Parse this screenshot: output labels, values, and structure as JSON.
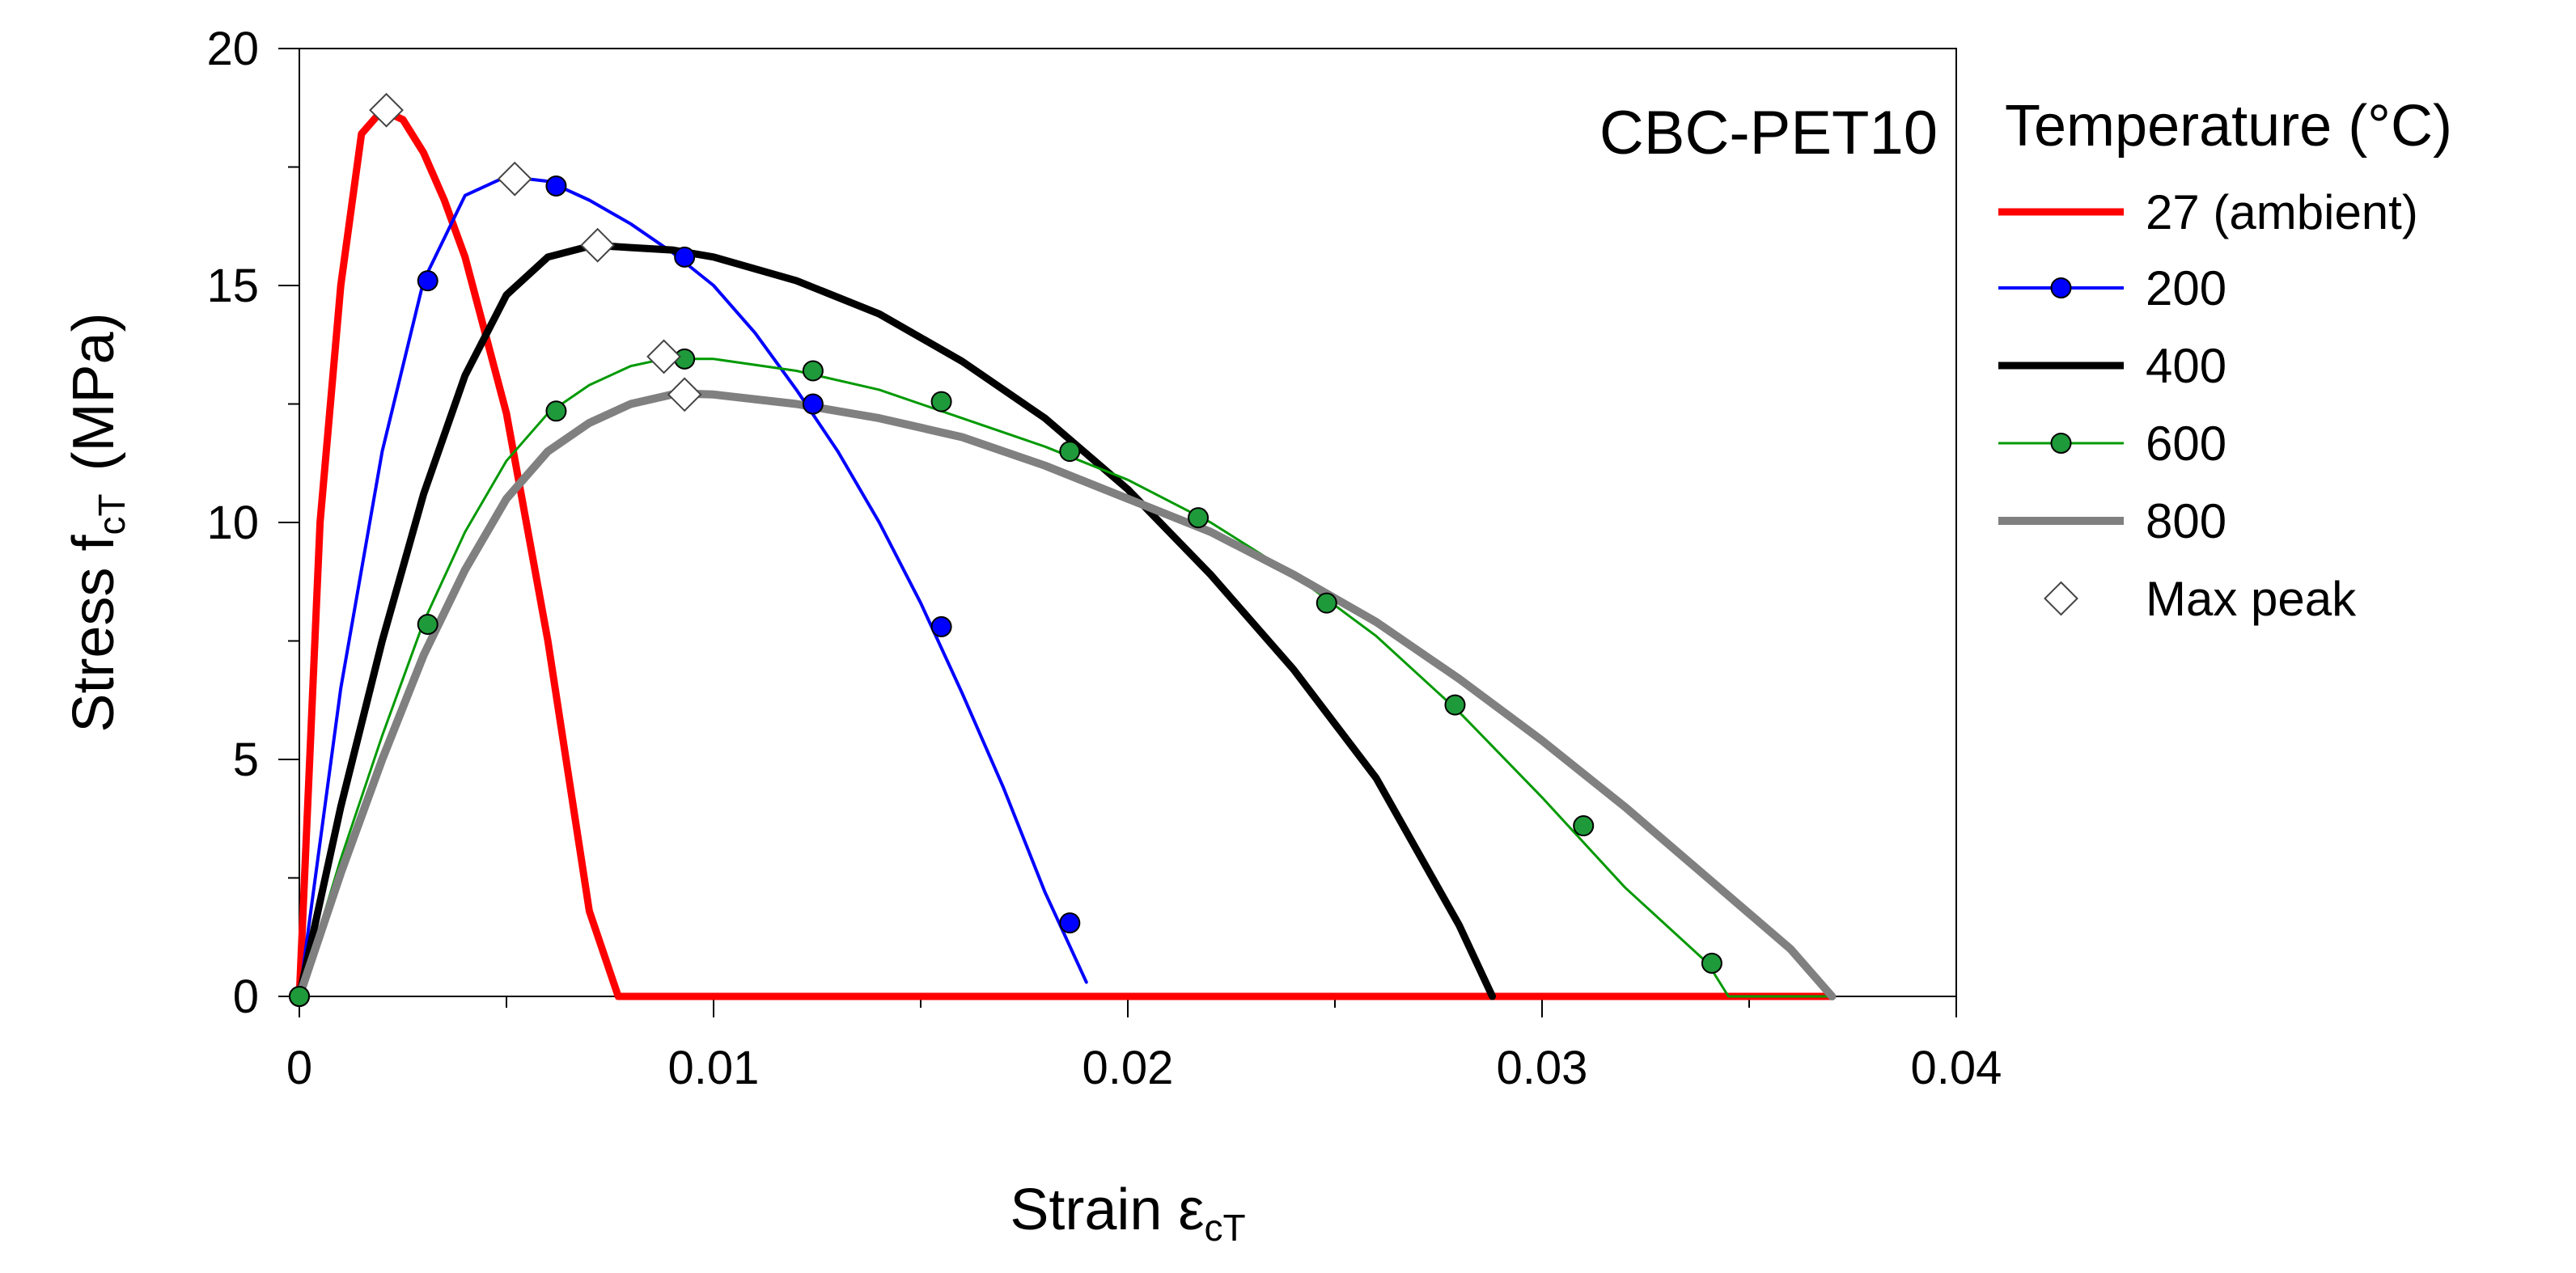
{
  "chart_data": {
    "type": "line",
    "annotation": "CBC-PET10",
    "xlim": [
      0,
      0.04
    ],
    "ylim": [
      0,
      20
    ],
    "xticks": [
      0,
      0.01,
      0.02,
      0.03,
      0.04
    ],
    "xtick_labels": [
      "0",
      "0.01",
      "0.02",
      "0.03",
      "0.04"
    ],
    "yticks": [
      0,
      5,
      10,
      15,
      20
    ],
    "ytick_labels": [
      "0",
      "5",
      "10",
      "15",
      "20"
    ],
    "xlabel": {
      "main": "Strain ε",
      "sub": "cT"
    },
    "ylabel": {
      "main": "Stress f",
      "sub": "cT",
      "unit": "(MPa)"
    },
    "legend": {
      "title": "Temperature (°C)",
      "placement": "right"
    },
    "series": [
      {
        "name": "27 (ambient)",
        "color": "#ff0000",
        "width": 9,
        "marker": "none",
        "x": [
          0,
          0.0005,
          0.001,
          0.0015,
          0.002,
          0.0025,
          0.003,
          0.0035,
          0.004,
          0.005,
          0.006,
          0.007,
          0.0077,
          0.01,
          0.02,
          0.03,
          0.037
        ],
        "y": [
          0,
          10,
          15,
          18.2,
          18.7,
          18.5,
          17.8,
          16.8,
          15.6,
          12.3,
          7.5,
          1.8,
          0,
          0,
          0,
          0,
          0
        ]
      },
      {
        "name": "200",
        "color": "#0000ff",
        "width": 4,
        "marker": "circle",
        "marker_fill": "#0000ff",
        "x": [
          0,
          0.001,
          0.002,
          0.003,
          0.004,
          0.005,
          0.006,
          0.007,
          0.008,
          0.009,
          0.01,
          0.011,
          0.012,
          0.013,
          0.014,
          0.015,
          0.016,
          0.017,
          0.018,
          0.019
        ],
        "y": [
          0,
          6.5,
          11.5,
          15.1,
          16.9,
          17.3,
          17.2,
          16.8,
          16.3,
          15.7,
          15.0,
          14.0,
          12.8,
          11.5,
          10.0,
          8.3,
          6.4,
          4.4,
          2.2,
          0.3
        ],
        "marker_x": [
          0,
          0.0031,
          0.0062,
          0.0093,
          0.0124,
          0.0155,
          0.0186
        ],
        "marker_y": [
          0,
          15.1,
          17.1,
          15.6,
          12.5,
          7.8,
          1.55
        ]
      },
      {
        "name": "400",
        "color": "#000000",
        "width": 9,
        "marker": "none",
        "x": [
          0,
          0.001,
          0.002,
          0.003,
          0.004,
          0.005,
          0.006,
          0.0071,
          0.008,
          0.009,
          0.01,
          0.012,
          0.014,
          0.016,
          0.018,
          0.02,
          0.022,
          0.024,
          0.026,
          0.028,
          0.0288
        ],
        "y": [
          0,
          4.0,
          7.5,
          10.6,
          13.1,
          14.8,
          15.6,
          15.85,
          15.8,
          15.75,
          15.6,
          15.1,
          14.4,
          13.4,
          12.2,
          10.7,
          8.9,
          6.9,
          4.6,
          1.5,
          0
        ]
      },
      {
        "name": "600",
        "color": "#009900",
        "width": 3,
        "marker": "circle",
        "marker_fill": "#1f9a3a",
        "x": [
          0,
          0.001,
          0.002,
          0.003,
          0.004,
          0.005,
          0.006,
          0.007,
          0.008,
          0.0088,
          0.01,
          0.012,
          0.014,
          0.016,
          0.018,
          0.02,
          0.022,
          0.024,
          0.026,
          0.028,
          0.03,
          0.032,
          0.034,
          0.0345,
          0.037
        ],
        "y": [
          0,
          2.9,
          5.5,
          7.9,
          9.8,
          11.3,
          12.3,
          12.9,
          13.3,
          13.45,
          13.45,
          13.2,
          12.8,
          12.2,
          11.6,
          10.9,
          10.0,
          8.9,
          7.6,
          6.0,
          4.2,
          2.3,
          0.7,
          0,
          0
        ],
        "marker_x": [
          0,
          0.0031,
          0.0062,
          0.0093,
          0.0124,
          0.0155,
          0.0186,
          0.0217,
          0.0248,
          0.0279,
          0.031,
          0.0341
        ],
        "marker_y": [
          0,
          7.85,
          12.35,
          13.45,
          13.2,
          12.55,
          11.5,
          10.1,
          8.3,
          6.15,
          3.6,
          0.7
        ]
      },
      {
        "name": "800",
        "color": "#808080",
        "width": 10,
        "marker": "none",
        "x": [
          0,
          0.001,
          0.002,
          0.003,
          0.004,
          0.005,
          0.006,
          0.007,
          0.008,
          0.009,
          0.0093,
          0.01,
          0.012,
          0.014,
          0.016,
          0.018,
          0.02,
          0.022,
          0.024,
          0.026,
          0.028,
          0.03,
          0.032,
          0.034,
          0.036,
          0.037
        ],
        "y": [
          0,
          2.6,
          5.0,
          7.2,
          9.0,
          10.5,
          11.5,
          12.1,
          12.5,
          12.7,
          12.72,
          12.7,
          12.5,
          12.2,
          11.8,
          11.2,
          10.5,
          9.8,
          8.9,
          7.9,
          6.7,
          5.4,
          4.0,
          2.5,
          1.0,
          0
        ]
      }
    ],
    "max_peaks": {
      "name": "Max peak",
      "x": [
        0.0021,
        0.0052,
        0.0072,
        0.0088,
        0.0093
      ],
      "y": [
        18.7,
        17.25,
        15.85,
        13.5,
        12.7
      ]
    }
  }
}
